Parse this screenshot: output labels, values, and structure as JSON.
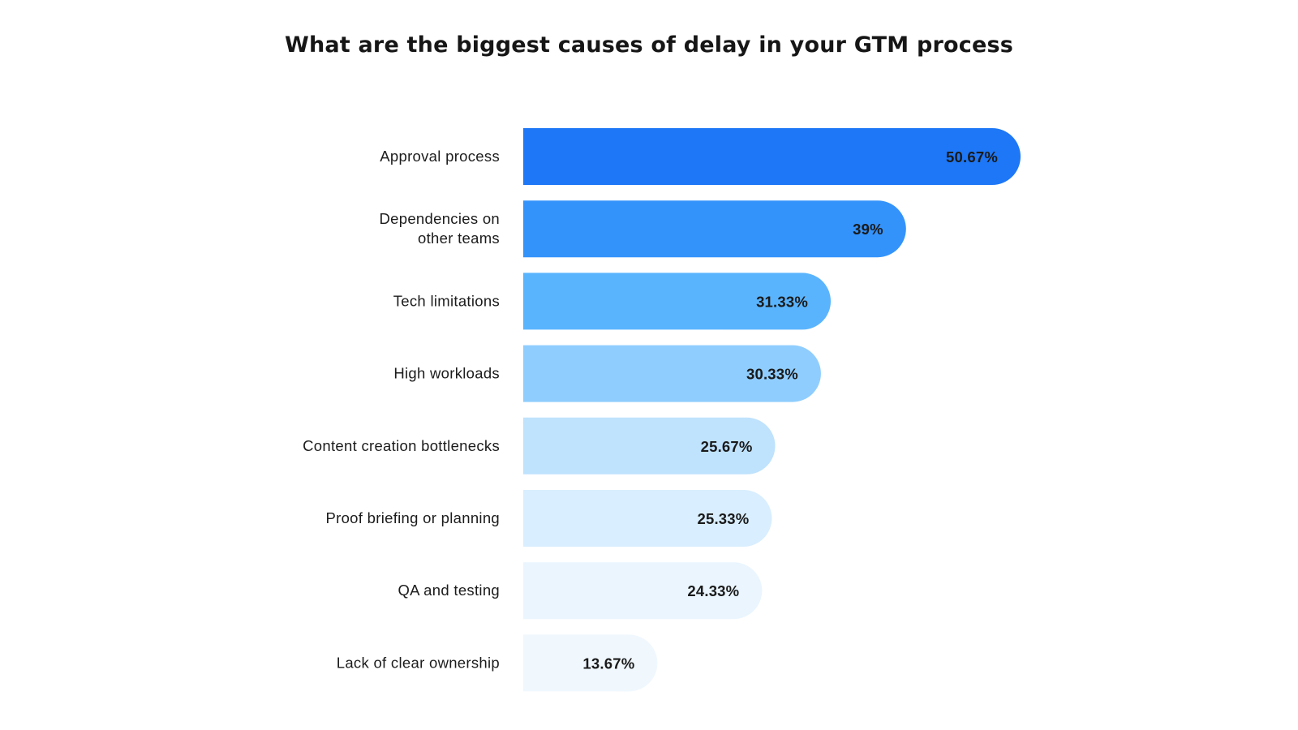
{
  "chart_data": {
    "type": "bar",
    "orientation": "horizontal",
    "title": "What are the biggest causes of delay in your GTM process",
    "categories": [
      [
        "Approval process"
      ],
      [
        "Dependencies on",
        "other teams"
      ],
      [
        "Tech limitations"
      ],
      [
        "High workloads"
      ],
      [
        "Content creation bottlenecks"
      ],
      [
        "Proof briefing or planning"
      ],
      [
        "QA and testing"
      ],
      [
        "Lack of clear ownership"
      ]
    ],
    "values": [
      50.67,
      39,
      31.33,
      30.33,
      25.67,
      25.33,
      24.33,
      13.67
    ],
    "value_labels": [
      "50.67%",
      "39%",
      "31.33%",
      "30.33%",
      "25.67%",
      "25.33%",
      "24.33%",
      "13.67%"
    ],
    "bar_colors": [
      "#1d77f6",
      "#3493fb",
      "#5ab4fd",
      "#8fcdfe",
      "#bfe2fd",
      "#d9eefe",
      "#eaf5fe",
      "#f0f8fe"
    ],
    "xlim": [
      0,
      50.67
    ],
    "grid": false,
    "legend": "none"
  }
}
